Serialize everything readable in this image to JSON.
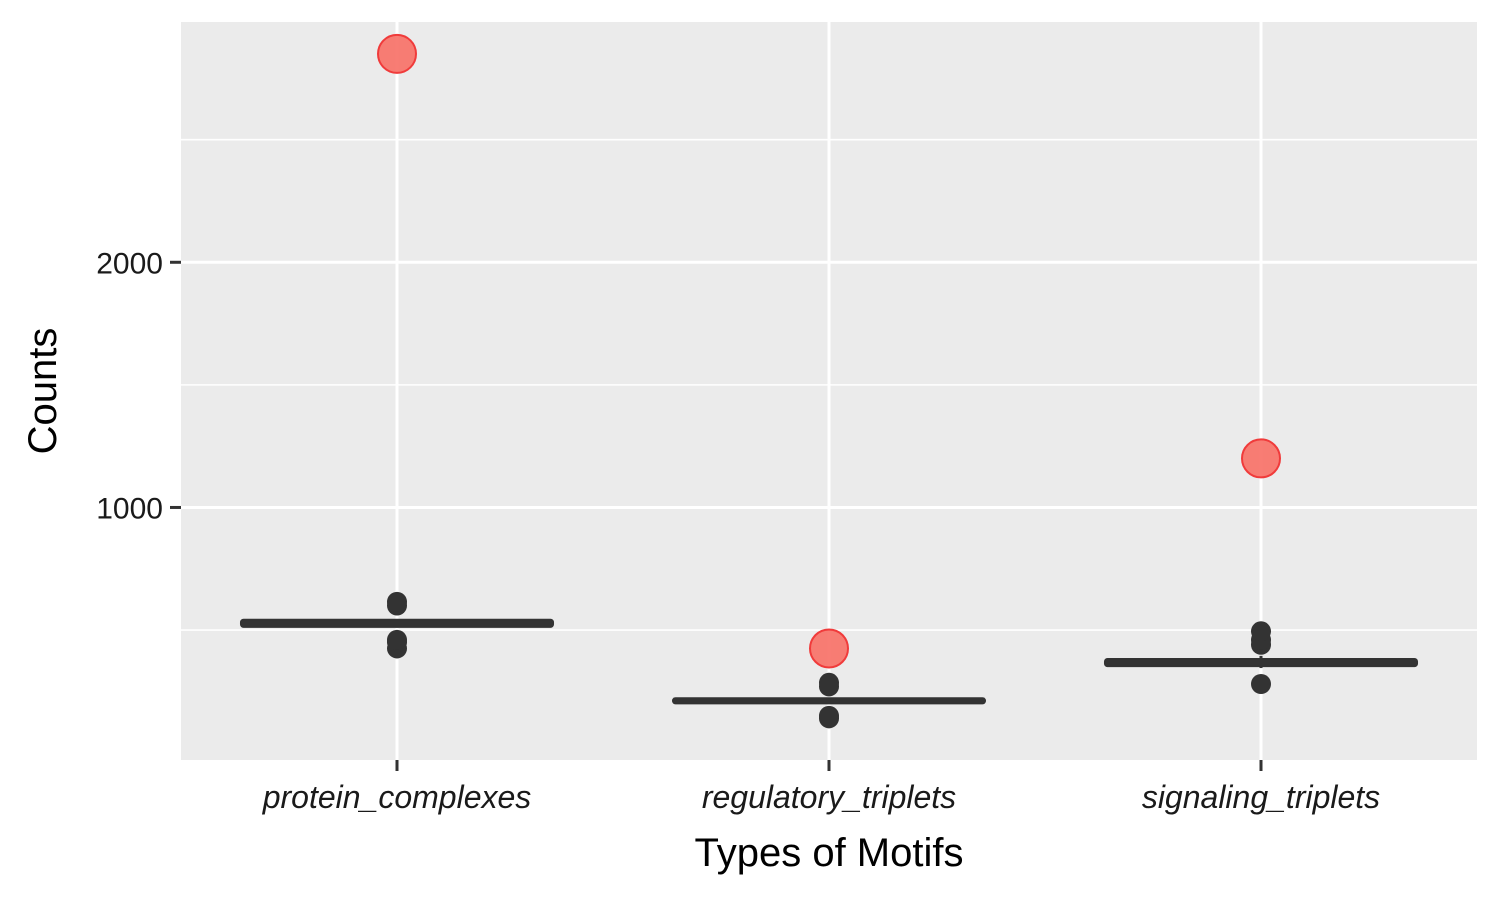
{
  "chart_data": {
    "type": "boxplot",
    "xlabel": "Types of Motifs",
    "ylabel": "Counts",
    "categories": [
      "protein_complexes",
      "regulatory_triplets",
      "signaling_triplets"
    ],
    "ylim": [
      -30,
      2980
    ],
    "y_ticks": [
      1000,
      2000
    ],
    "y_minor_gridlines": [
      500,
      1500,
      2500
    ],
    "grid": true,
    "legend": "none",
    "boxes": [
      {
        "category": "protein_complexes",
        "q1": 515,
        "median": 527,
        "q3": 540,
        "whisker_low": 510,
        "whisker_high": 545,
        "outliers": [
          425,
          450,
          460,
          600,
          615
        ]
      },
      {
        "category": "regulatory_triplets",
        "q1": 203,
        "median": 212,
        "q3": 220,
        "whisker_low": 200,
        "whisker_high": 225,
        "outliers": [
          140,
          150,
          270,
          285
        ]
      },
      {
        "category": "signaling_triplets",
        "q1": 355,
        "median": 367,
        "q3": 380,
        "whisker_low": 345,
        "whisker_high": 395,
        "outliers": [
          280,
          440,
          460,
          495
        ]
      }
    ],
    "highlight_points": [
      {
        "category": "protein_complexes",
        "value": 2850
      },
      {
        "category": "regulatory_triplets",
        "value": 425
      },
      {
        "category": "signaling_triplets",
        "value": 1200
      }
    ],
    "colors": {
      "panel_background": "#ebebeb",
      "gridline": "#ffffff",
      "box": "#333333",
      "highlight_fill": "#f8766d",
      "highlight_stroke": "#f03b3b",
      "tick": "#333333"
    }
  }
}
